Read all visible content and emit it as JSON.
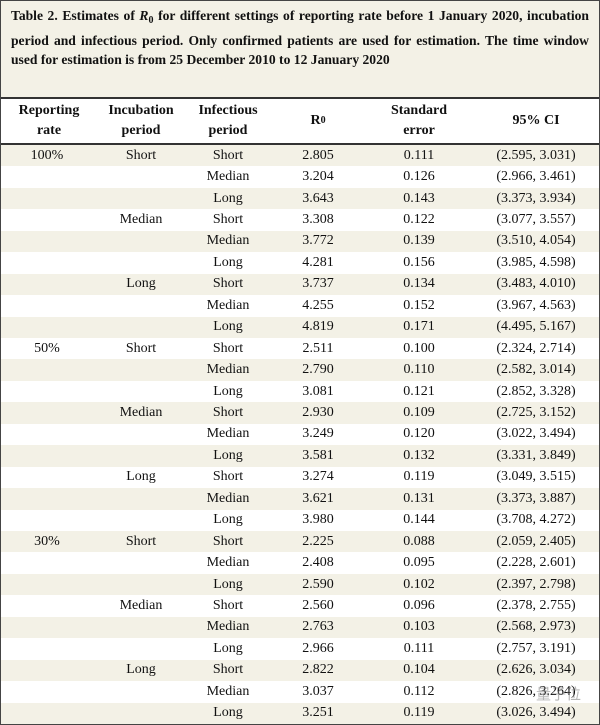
{
  "table": {
    "title": {
      "prefix": "Table 2. Estimates of ",
      "symbol": "R",
      "subscript": "0",
      "suffix": " for different settings of reporting rate before 1 January 2020, incubation period and infectious period. Only confirmed patients are used for estimation. The time window used for estimation is from 25 December 2010 to 12 January 2020"
    },
    "header": {
      "reporting_rate": "Reporting rate",
      "incubation": "Incubation period",
      "infectious": "Infectious period",
      "r0_symbol": "R",
      "r0_subscript": "0",
      "se": "Standard error",
      "ci": "95% CI"
    },
    "rows": [
      [
        "100%",
        "Short",
        "Short",
        "2.805",
        "0.111",
        "(2.595, 3.031)"
      ],
      [
        null,
        null,
        "Median",
        "3.204",
        "0.126",
        "(2.966, 3.461)"
      ],
      [
        null,
        null,
        "Long",
        "3.643",
        "0.143",
        "(3.373, 3.934)"
      ],
      [
        null,
        "Median",
        "Short",
        "3.308",
        "0.122",
        "(3.077, 3.557)"
      ],
      [
        null,
        null,
        "Median",
        "3.772",
        "0.139",
        "(3.510, 4.054)"
      ],
      [
        null,
        null,
        "Long",
        "4.281",
        "0.156",
        "(3.985, 4.598)"
      ],
      [
        null,
        "Long",
        "Short",
        "3.737",
        "0.134",
        "(3.483, 4.010)"
      ],
      [
        null,
        null,
        "Median",
        "4.255",
        "0.152",
        "(3.967, 4.563)"
      ],
      [
        null,
        null,
        "Long",
        "4.819",
        "0.171",
        "(4.495, 5.167)"
      ],
      [
        "50%",
        "Short",
        "Short",
        "2.511",
        "0.100",
        "(2.324, 2.714)"
      ],
      [
        null,
        null,
        "Median",
        "2.790",
        "0.110",
        "(2.582, 3.014)"
      ],
      [
        null,
        null,
        "Long",
        "3.081",
        "0.121",
        "(2.852, 3.328)"
      ],
      [
        null,
        "Median",
        "Short",
        "2.930",
        "0.109",
        "(2.725, 3.152)"
      ],
      [
        null,
        null,
        "Median",
        "3.249",
        "0.120",
        "(3.022, 3.494)"
      ],
      [
        null,
        null,
        "Long",
        "3.581",
        "0.132",
        "(3.331, 3.849)"
      ],
      [
        null,
        "Long",
        "Short",
        "3.274",
        "0.119",
        "(3.049, 3.515)"
      ],
      [
        null,
        null,
        "Median",
        "3.621",
        "0.131",
        "(3.373, 3.887)"
      ],
      [
        null,
        null,
        "Long",
        "3.980",
        "0.144",
        "(3.708, 4.272)"
      ],
      [
        "30%",
        "Short",
        "Short",
        "2.225",
        "0.088",
        "(2.059, 2.405)"
      ],
      [
        null,
        null,
        "Median",
        "2.408",
        "0.095",
        "(2.228, 2.601)"
      ],
      [
        null,
        null,
        "Long",
        "2.590",
        "0.102",
        "(2.397, 2.798)"
      ],
      [
        null,
        "Median",
        "Short",
        "2.560",
        "0.096",
        "(2.378, 2.755)"
      ],
      [
        null,
        null,
        "Median",
        "2.763",
        "0.103",
        "(2.568, 2.973)"
      ],
      [
        null,
        null,
        "Long",
        "2.966",
        "0.111",
        "(2.757, 3.191)"
      ],
      [
        null,
        "Long",
        "Short",
        "2.822",
        "0.104",
        "(2.626, 3.034)"
      ],
      [
        null,
        null,
        "Median",
        "3.037",
        "0.112",
        "(2.826, 3.264)"
      ],
      [
        null,
        null,
        "Long",
        "3.251",
        "0.119",
        "(3.026, 3.494)"
      ]
    ]
  },
  "watermark": "量子位"
}
